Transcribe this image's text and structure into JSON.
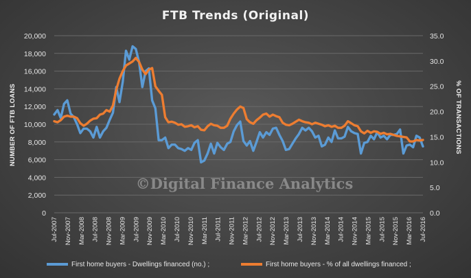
{
  "chart_data": {
    "type": "line",
    "title": "FTB Trends  (Original)",
    "watermark": "©Digital Finance Analytics",
    "ylabel_left": "NUMBER OF FTB LOANS",
    "ylabel_right": "% OF TRANSACTIONS",
    "ylim_left": [
      0,
      20000
    ],
    "ylim_right": [
      0,
      35
    ],
    "yticks_left": [
      "0",
      "2,000",
      "4,000",
      "6,000",
      "8,000",
      "10,000",
      "12,000",
      "14,000",
      "16,000",
      "18,000",
      "20,000"
    ],
    "yticks_right": [
      "0.0",
      "5.0",
      "10.0",
      "15.0",
      "20.0",
      "25.0",
      "30.0",
      "35.0"
    ],
    "grid": true,
    "legend_position": "bottom",
    "x_tick_labels": [
      "Jul-2007",
      "Nov-2007",
      "Mar-2008",
      "Jul-2008",
      "Nov-2008",
      "Mar-2009",
      "Jul-2009",
      "Nov-2009",
      "Mar-2010",
      "Jul-2010",
      "Nov-2010",
      "Mar-2011",
      "Jul-2011",
      "Nov-2011",
      "Mar-2012",
      "Jul-2012",
      "Nov-2012",
      "Mar-2013",
      "Jul-2013",
      "Nov-2013",
      "Mar-2014",
      "Jul-2014",
      "Nov-2014",
      "Mar-2015",
      "Jul-2015",
      "Nov-2015",
      "Mar-2016",
      "Jul-2016"
    ],
    "x_start": "Jul-2007",
    "x_end": "Jul-2016",
    "series": [
      {
        "name": "First home buyers - Dwellings financed (no.) ;",
        "axis": "left",
        "color": "#5b9bd5",
        "values": [
          11100,
          11600,
          10700,
          12300,
          12700,
          11200,
          10800,
          10000,
          9000,
          9500,
          9500,
          9200,
          8500,
          9700,
          8500,
          9200,
          9600,
          10500,
          11300,
          14200,
          12500,
          14800,
          18300,
          17300,
          18800,
          18500,
          17000,
          14200,
          16000,
          16300,
          12700,
          11800,
          8200,
          8200,
          8500,
          7300,
          7700,
          7700,
          7300,
          7200,
          7000,
          7300,
          7100,
          7900,
          8200,
          5700,
          5900,
          6700,
          7800,
          6700,
          7900,
          7400,
          7100,
          7800,
          8000,
          9200,
          9900,
          10300,
          8100,
          7600,
          8100,
          7000,
          8000,
          9100,
          8500,
          9100,
          8800,
          9500,
          9600,
          8800,
          8100,
          7100,
          7200,
          7800,
          8400,
          8900,
          9600,
          9300,
          9600,
          9200,
          8500,
          8700,
          7500,
          7700,
          8500,
          8000,
          9300,
          8400,
          8400,
          8600,
          9700,
          9200,
          9000,
          8900,
          6700,
          7900,
          8000,
          8700,
          8300,
          9100,
          8500,
          8700,
          8300,
          8800,
          8800,
          8900,
          9400,
          6700,
          7600,
          7700,
          7400,
          8700,
          8500,
          7500
        ]
      },
      {
        "name": "First home buyers - % of all dwellings financed ;",
        "axis": "right",
        "color": "#ed7d31",
        "values": [
          18.1,
          17.9,
          18.3,
          19.0,
          19.2,
          19.0,
          19.0,
          18.7,
          17.7,
          17.2,
          17.6,
          18.2,
          18.6,
          18.7,
          19.4,
          19.6,
          20.3,
          20.0,
          21.2,
          24.3,
          26.5,
          28.0,
          29.1,
          29.5,
          29.9,
          30.6,
          29.8,
          28.3,
          27.4,
          28.3,
          28.6,
          25.0,
          24.1,
          23.3,
          18.9,
          17.9,
          18.0,
          17.8,
          17.4,
          17.5,
          17.0,
          17.1,
          17.3,
          16.9,
          17.1,
          16.4,
          16.3,
          17.1,
          17.6,
          17.3,
          17.2,
          16.8,
          16.8,
          17.2,
          18.6,
          19.6,
          20.4,
          21.0,
          20.7,
          18.5,
          17.9,
          17.6,
          18.3,
          18.8,
          19.4,
          19.6,
          19.0,
          19.4,
          19.1,
          18.9,
          17.8,
          17.4,
          17.3,
          17.6,
          18.0,
          18.4,
          18.1,
          17.9,
          17.8,
          17.5,
          17.8,
          17.6,
          17.4,
          17.1,
          17.3,
          17.0,
          17.2,
          16.8,
          16.8,
          17.2,
          18.1,
          17.7,
          17.3,
          17.1,
          16.1,
          15.7,
          16.2,
          15.8,
          16.1,
          16.0,
          15.6,
          15.8,
          15.5,
          15.6,
          15.4,
          15.2,
          15.1,
          15.0,
          14.9,
          14.1,
          14.1,
          14.4,
          14.3,
          14.4
        ]
      }
    ]
  }
}
